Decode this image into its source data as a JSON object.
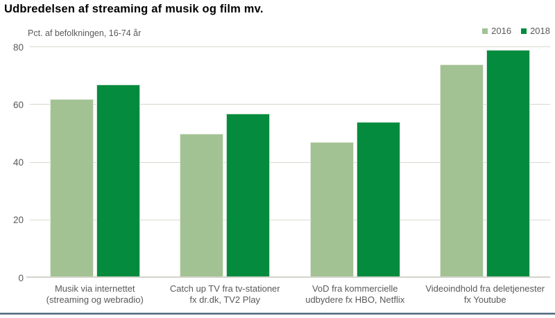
{
  "title": "Udbredelsen af streaming af musik og film mv.",
  "subtitle": "Pct. af befolkningen, 16-74 år",
  "legend": {
    "items": [
      {
        "label": "2016",
        "color": "#a3c294"
      },
      {
        "label": "2018",
        "color": "#048b3e"
      }
    ]
  },
  "colors": {
    "series_2016": "#a3c294",
    "series_2018": "#048b3e",
    "grid": "#d8d8d0",
    "axis_text": "#595959",
    "title_text": "#000000",
    "bottom_rule": "#4d687c"
  },
  "chart_data": {
    "type": "bar",
    "title": "Udbredelsen af streaming af musik og film mv.",
    "subtitle": "Pct. af befolkningen, 16-74 år",
    "categories": [
      "Musik via internettet (streaming og webradio)",
      "Catch up TV fra tv-stationer fx dr.dk, TV2 Play",
      "VoD fra kommercielle udbydere fx HBO, Netflix",
      "Videoindhold fra deletjenester fx Youtube"
    ],
    "category_lines": [
      [
        "Musik via internettet",
        "(streaming og webradio)"
      ],
      [
        "Catch up TV fra tv-stationer",
        "fx dr.dk, TV2 Play"
      ],
      [
        "VoD fra kommercielle",
        "udbydere fx HBO, Netflix"
      ],
      [
        "Videoindhold fra deletjenester",
        "fx Youtube"
      ]
    ],
    "series": [
      {
        "name": "2016",
        "color": "#a3c294",
        "values": [
          62,
          50,
          47,
          74
        ]
      },
      {
        "name": "2018",
        "color": "#048b3e",
        "values": [
          67,
          57,
          54,
          79
        ]
      }
    ],
    "ylabel": "Pct. af befolkningen, 16-74 år",
    "xlabel": "",
    "ylim": [
      0,
      80
    ],
    "yticks": [
      0,
      20,
      40,
      60,
      80
    ],
    "grid": true,
    "legend_position": "top-right"
  }
}
